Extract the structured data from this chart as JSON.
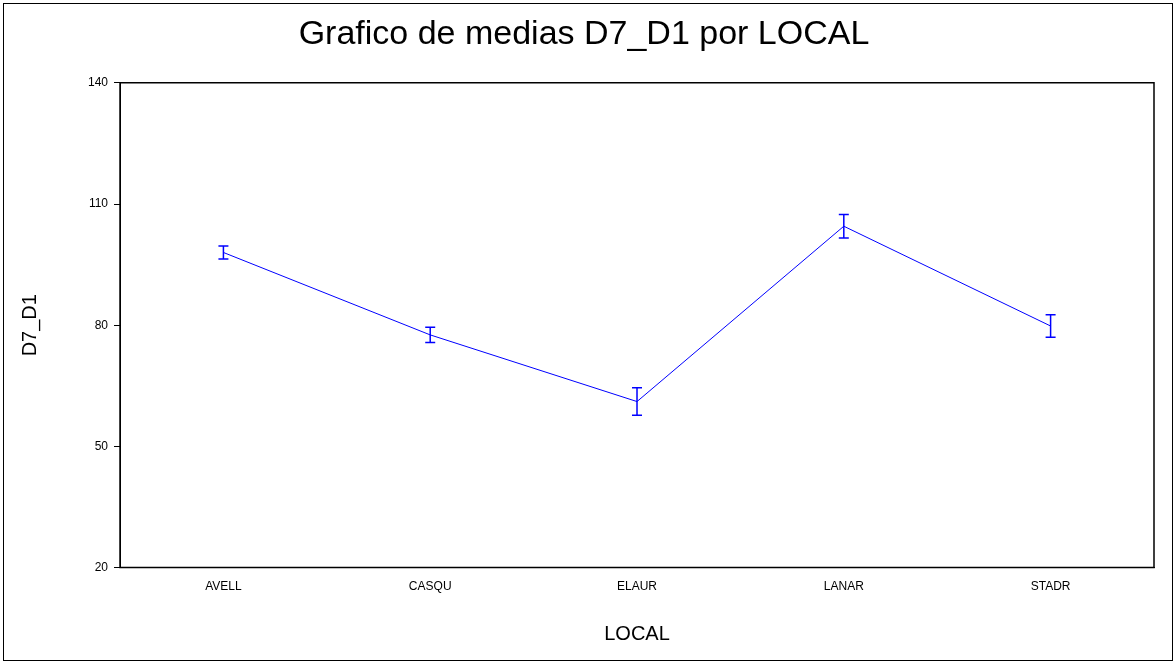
{
  "chart_data": {
    "type": "line",
    "title": "Grafico de medias D7_D1 por LOCAL",
    "xlabel": "LOCAL",
    "ylabel": "D7_D1",
    "categories": [
      "AVELL",
      "CASQU",
      "ELAUR",
      "LANAR",
      "STADR"
    ],
    "series": [
      {
        "color": "#0000ff",
        "values": [
          98.0,
          77.6,
          61.1,
          104.5,
          79.8
        ],
        "errors": [
          1.6,
          1.9,
          3.4,
          2.9,
          2.8
        ]
      }
    ],
    "ylim": [
      20,
      140
    ],
    "yticks": [
      20,
      50,
      80,
      110,
      140
    ],
    "grid": false,
    "legend": false,
    "marker": "none",
    "line_style": "solid"
  }
}
